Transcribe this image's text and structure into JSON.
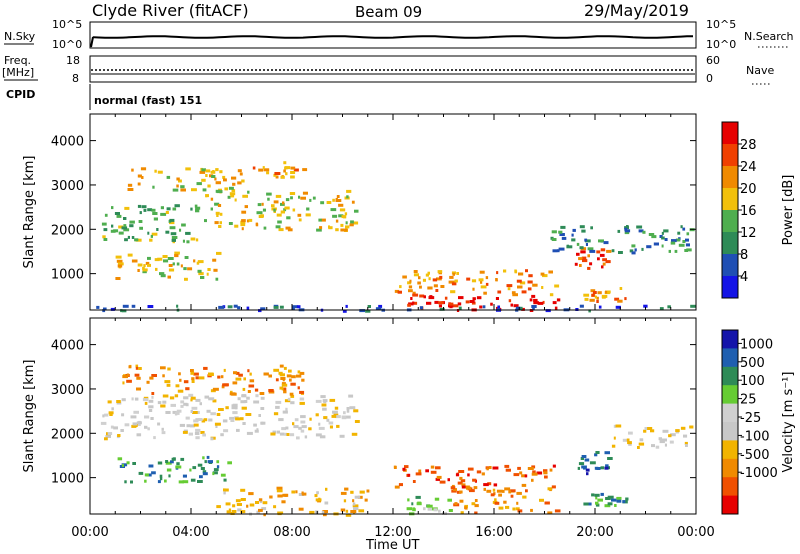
{
  "header": {
    "station": "Clyde River (fitACF)",
    "beam": "Beam 09",
    "date": "29/May/2019"
  },
  "strips": {
    "nsky_label": "N.Sky",
    "nsky_ticks": [
      "10^5",
      "10^0"
    ],
    "nsearch_label": "N.Search",
    "nsearch_ticks": [
      "10^5",
      "10^0"
    ],
    "freq_label_1": "Freq.",
    "freq_label_2": "[MHz]",
    "freq_ticks": [
      "18",
      "8"
    ],
    "nave_label": "Nave",
    "nave_ticks": [
      "60",
      "0"
    ],
    "cpid_label": "CPID",
    "cpid_value": "normal (fast) 151"
  },
  "colors": {
    "power": [
      "#1414e6",
      "#1f4fb4",
      "#2e8b57",
      "#4fae4f",
      "#f2c00b",
      "#f08a00",
      "#f04000",
      "#e60000"
    ],
    "velocity": [
      "#e60000",
      "#f05000",
      "#f08a00",
      "#f2b400",
      "#c8c8c8",
      "#d0d0d0",
      "#66cc33",
      "#2e8b57",
      "#1f5fb0",
      "#1414aa"
    ]
  },
  "chart_data": [
    {
      "type": "heatmap",
      "panel": "power",
      "xlabel": "Time UT",
      "ylabel": "Slant Range [km]",
      "xlim": [
        0,
        24
      ],
      "ylim": [
        180,
        4600
      ],
      "x_ticks": [
        "00:00",
        "04:00",
        "08:00",
        "12:00",
        "16:00",
        "20:00",
        "00:00"
      ],
      "y_ticks": [
        "1000",
        "2000",
        "3000",
        "4000"
      ],
      "colorbar_label": "Power [dB]",
      "colorbar_ticks": [
        "4",
        "8",
        "12",
        "16",
        "20",
        "24",
        "28"
      ],
      "regions": [
        {
          "t0": 0.4,
          "t1": 4.2,
          "r0": 1750,
          "r1": 2600,
          "level": 3
        },
        {
          "t0": 1.2,
          "t1": 6.0,
          "r0": 2900,
          "r1": 3400,
          "level": 4
        },
        {
          "t0": 4.5,
          "t1": 10.5,
          "r0": 2000,
          "r1": 2900,
          "level": 4
        },
        {
          "t0": 6.0,
          "t1": 8.5,
          "r0": 3200,
          "r1": 3550,
          "level": 5
        },
        {
          "t0": 1.0,
          "t1": 5.0,
          "r0": 900,
          "r1": 1500,
          "level": 4
        },
        {
          "t0": 12.5,
          "t1": 14.3,
          "r0": 200,
          "r1": 550,
          "level": 7
        },
        {
          "t0": 14.3,
          "t1": 18.5,
          "r0": 200,
          "r1": 550,
          "level": 7
        },
        {
          "t0": 12.0,
          "t1": 18.5,
          "r0": 550,
          "r1": 1100,
          "level": 5
        },
        {
          "t0": 19.2,
          "t1": 20.5,
          "r0": 1100,
          "r1": 1600,
          "level": 6
        },
        {
          "t0": 19.5,
          "t1": 21.2,
          "r0": 400,
          "r1": 700,
          "level": 5
        },
        {
          "t0": 18.0,
          "t1": 23.8,
          "r0": 1500,
          "r1": 2100,
          "level": 2
        },
        {
          "t0": 0.0,
          "t1": 24.0,
          "r0": 180,
          "r1": 300,
          "level": 1
        }
      ]
    },
    {
      "type": "heatmap",
      "panel": "velocity",
      "xlabel": "Time UT",
      "ylabel": "Slant Range [km]",
      "xlim": [
        0,
        24
      ],
      "ylim": [
        180,
        4600
      ],
      "x_ticks": [
        "00:00",
        "04:00",
        "08:00",
        "12:00",
        "16:00",
        "20:00",
        "00:00"
      ],
      "y_ticks": [
        "1000",
        "2000",
        "3000",
        "4000"
      ],
      "colorbar_label": "Velocity [m s⁻¹]",
      "colorbar_ticks": [
        "1000",
        "500",
        "100",
        "25",
        "-25",
        "-100",
        "-500",
        "-1000"
      ],
      "regions": [
        {
          "t0": 0.4,
          "t1": 10.5,
          "r0": 1900,
          "r1": 2900,
          "level": 4
        },
        {
          "t0": 1.2,
          "t1": 8.5,
          "r0": 2900,
          "r1": 3550,
          "level": 2
        },
        {
          "t0": 1.0,
          "t1": 5.5,
          "r0": 900,
          "r1": 1500,
          "level": 7
        },
        {
          "t0": 5.0,
          "t1": 11.0,
          "r0": 180,
          "r1": 800,
          "level": 3
        },
        {
          "t0": 12.0,
          "t1": 14.3,
          "r0": 200,
          "r1": 600,
          "level": 6
        },
        {
          "t0": 14.3,
          "t1": 18.5,
          "r0": 200,
          "r1": 800,
          "level": 2
        },
        {
          "t0": 12.0,
          "t1": 18.5,
          "r0": 800,
          "r1": 1300,
          "level": 1
        },
        {
          "t0": 19.2,
          "t1": 20.5,
          "r0": 1100,
          "r1": 1600,
          "level": 8
        },
        {
          "t0": 19.5,
          "t1": 21.2,
          "r0": 400,
          "r1": 700,
          "level": 7
        },
        {
          "t0": 20.5,
          "t1": 23.8,
          "r0": 1700,
          "r1": 2200,
          "level": 4
        }
      ]
    }
  ]
}
